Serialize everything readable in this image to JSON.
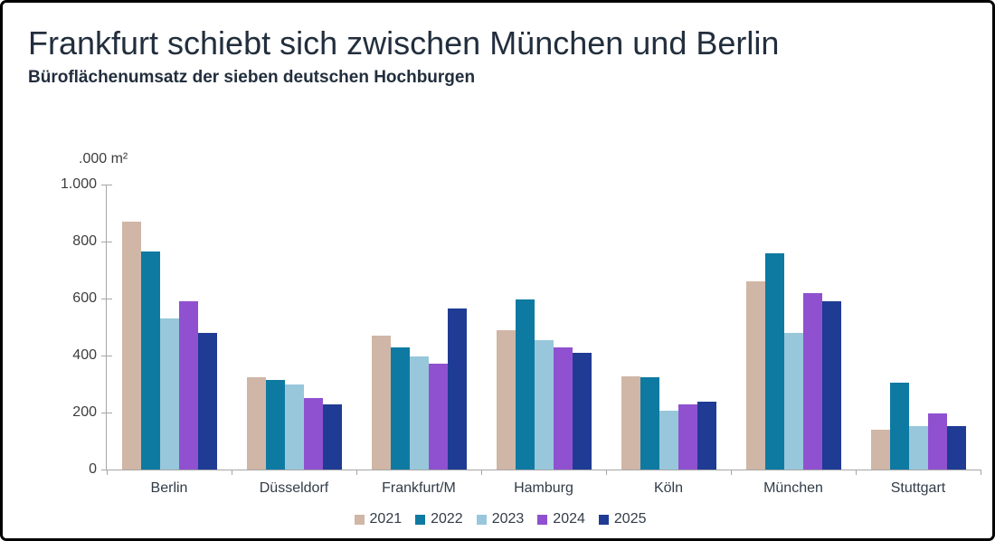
{
  "title": "Frankfurt schiebt sich zwischen München und Berlin",
  "subtitle": "Büroflächenumsatz der sieben deutschen Hochburgen",
  "chart_data": {
    "type": "bar",
    "title": "Frankfurt schiebt sich zwischen München und Berlin",
    "subtitle": "Büroflächenumsatz der sieben deutschen Hochburgen",
    "unit_label": ".000 m²",
    "xlabel": "",
    "ylabel": ".000 m²",
    "ylim": [
      0,
      1000
    ],
    "yticks": [
      0,
      200,
      400,
      600,
      800,
      1000
    ],
    "ytick_labels": [
      "0",
      "200",
      "400",
      "600",
      "800",
      "1.000"
    ],
    "grid": false,
    "legend_position": "bottom",
    "categories": [
      "Berlin",
      "Düsseldorf",
      "Frankfurt/M",
      "Hamburg",
      "Köln",
      "München",
      "Stuttgart"
    ],
    "series": [
      {
        "name": "2021",
        "color": "#D0B6A6",
        "values": [
          870,
          325,
          470,
          488,
          327,
          660,
          140
        ]
      },
      {
        "name": "2022",
        "color": "#0E7AA2",
        "values": [
          765,
          315,
          430,
          598,
          325,
          760,
          305
        ]
      },
      {
        "name": "2023",
        "color": "#98C7DB",
        "values": [
          530,
          300,
          398,
          455,
          207,
          480,
          152
        ]
      },
      {
        "name": "2024",
        "color": "#8F51CF",
        "values": [
          590,
          250,
          370,
          428,
          227,
          618,
          197
        ]
      },
      {
        "name": "2025",
        "color": "#1F3B94",
        "values": [
          480,
          228,
          565,
          410,
          238,
          590,
          152
        ]
      }
    ],
    "colors": {
      "axis": "#a6a6a6",
      "title_text": "#222e3d",
      "tick_text": "#3d3d3d",
      "category_text": "#323c48"
    }
  }
}
